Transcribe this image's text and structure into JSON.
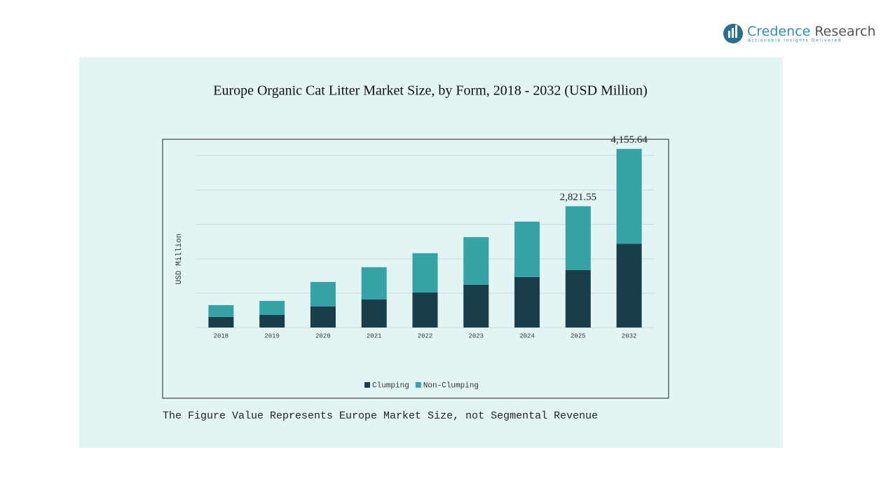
{
  "logo": {
    "brand": "Credence",
    "brand2": "Research",
    "tagline": "Actionable Insights Delivered"
  },
  "chart_data": {
    "type": "stacked_bar",
    "title": "Europe Organic Cat Litter Market Size, by Form, 2018 - 2032 (USD Million)",
    "y_label": "USD Million",
    "categories": [
      "2018",
      "2019",
      "2020",
      "2021",
      "2022",
      "2023",
      "2024",
      "2025",
      "2032"
    ],
    "series": [
      {
        "name": "Clumping",
        "color": "#1a3d4a",
        "values": [
          245,
          294,
          489,
          652,
          816,
          995,
          1174,
          1337,
          1950
        ]
      },
      {
        "name": "Non-Clumping",
        "color": "#35a3a6",
        "values": [
          277,
          326,
          571,
          751,
          913,
          1109,
          1289,
          1484.55,
          2205.64
        ]
      }
    ],
    "annotations": [
      {
        "category": "2025",
        "value": 2821.55,
        "label": "2,821.55"
      },
      {
        "category": "2032",
        "value": 4155.64,
        "label": "4,155.64"
      }
    ],
    "ylim": [
      0,
      4200
    ],
    "yticks": [
      0,
      800,
      1600,
      2400,
      3200,
      4000
    ],
    "grid": true,
    "legend": "bottom",
    "footnote": "The Figure Value Represents Europe Market Size, not Segmental Revenue"
  }
}
